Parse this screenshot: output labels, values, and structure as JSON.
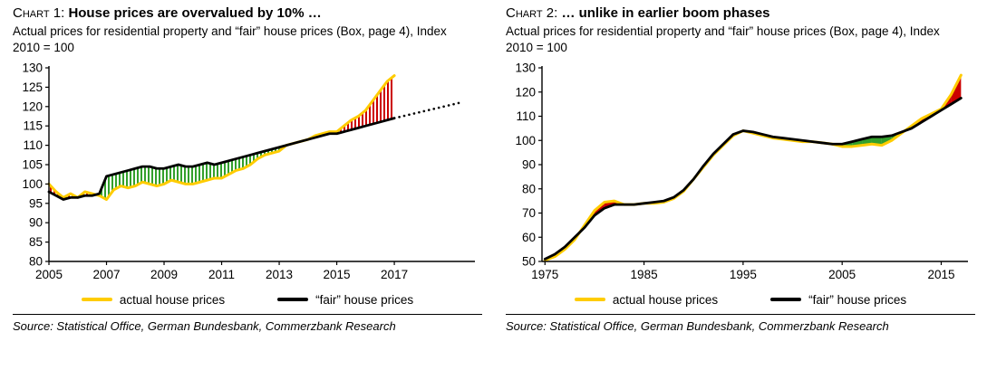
{
  "source": "Source: Statistical Office, German Bundesbank, Commerzbank Research",
  "colors": {
    "actual": "#FFCC00",
    "fair": "#000000",
    "overvalued": "#CC0000",
    "undervalued": "#33A02C"
  },
  "charts": [
    {
      "label": "Chart 1:",
      "title": "House prices are overvalued by 10% …",
      "subtitle": "Actual prices for residential property and “fair” house prices (Box, page 4), Index 2010 = 100",
      "legend": [
        {
          "name": "actual house prices"
        },
        {
          "name": "“fair” house prices"
        }
      ]
    },
    {
      "label": "Chart 2:",
      "title": "… unlike in earlier boom phases",
      "subtitle": "Actual prices for residential property and “fair” house prices (Box, page 4), Index 2010 = 100",
      "legend": [
        {
          "name": "actual house prices"
        },
        {
          "name": "“fair” house prices"
        }
      ]
    }
  ],
  "chart_data": [
    {
      "type": "line",
      "title": "House prices are overvalued by 10% …",
      "xlabel": "",
      "ylabel": "Index 2010 = 100",
      "ylim": [
        80,
        130
      ],
      "yticks": [
        80,
        85,
        90,
        95,
        100,
        105,
        110,
        115,
        120,
        125,
        130
      ],
      "xlim": [
        2005,
        2019.8
      ],
      "xticks": [
        2005,
        2007,
        2009,
        2011,
        2013,
        2015,
        2017
      ],
      "fill_style": "hatch",
      "grid": false,
      "legend_position": "bottom",
      "x": [
        2005,
        2005.25,
        2005.5,
        2005.75,
        2006,
        2006.25,
        2006.5,
        2006.75,
        2007,
        2007.25,
        2007.5,
        2007.75,
        2008,
        2008.25,
        2008.5,
        2008.75,
        2009,
        2009.25,
        2009.5,
        2009.75,
        2010,
        2010.25,
        2010.5,
        2010.75,
        2011,
        2011.25,
        2011.5,
        2011.75,
        2012,
        2012.25,
        2012.5,
        2012.75,
        2013,
        2013.25,
        2013.5,
        2013.75,
        2014,
        2014.25,
        2014.5,
        2014.75,
        2015,
        2015.25,
        2015.5,
        2015.75,
        2016,
        2016.25,
        2016.5,
        2016.75,
        2017
      ],
      "series": [
        {
          "name": "actual house prices",
          "values": [
            100,
            98,
            96.5,
            97.5,
            96.5,
            98,
            97.5,
            97,
            96,
            98.5,
            99.5,
            99,
            99.5,
            100.5,
            100,
            99.5,
            100,
            101,
            100.5,
            100,
            100,
            100.5,
            101,
            101.5,
            101.5,
            102.5,
            103.5,
            104,
            105,
            106.5,
            107.5,
            108,
            108.5,
            110,
            110.5,
            111,
            111.5,
            112.5,
            113,
            113.5,
            113.5,
            115,
            116.5,
            117.5,
            119,
            121.5,
            124,
            126.5,
            128
          ]
        },
        {
          "name": "“fair” house prices",
          "values": [
            98,
            97,
            96,
            96.5,
            96.5,
            97,
            97,
            97.5,
            102,
            102.5,
            103,
            103.5,
            104,
            104.5,
            104.5,
            104,
            104,
            104.5,
            105,
            104.5,
            104.5,
            105,
            105.5,
            105,
            105.5,
            106,
            106.5,
            107,
            107.5,
            108,
            108.5,
            109,
            109.5,
            110,
            110.5,
            111,
            111.5,
            112,
            112.5,
            113,
            113,
            113.5,
            114,
            114.5,
            115,
            115.5,
            116,
            116.5,
            117
          ]
        }
      ],
      "forecast": {
        "name": "fair house prices extrapolation (dotted)",
        "x": [
          2017,
          2019.4
        ],
        "values": [
          117,
          121.2
        ]
      }
    },
    {
      "type": "line",
      "title": "… unlike in earlier boom phases",
      "xlabel": "",
      "ylabel": "Index 2010 = 100",
      "ylim": [
        50,
        130
      ],
      "yticks": [
        50,
        60,
        70,
        80,
        90,
        100,
        110,
        120,
        130
      ],
      "xlim": [
        1974.7,
        2017.7
      ],
      "xticks": [
        1975,
        1985,
        1995,
        2005,
        2015
      ],
      "fill_style": "solid",
      "grid": false,
      "legend_position": "bottom",
      "x": [
        1975,
        1976,
        1977,
        1978,
        1979,
        1980,
        1981,
        1982,
        1983,
        1984,
        1985,
        1986,
        1987,
        1988,
        1989,
        1990,
        1991,
        1992,
        1993,
        1994,
        1995,
        1996,
        1997,
        1998,
        1999,
        2000,
        2001,
        2002,
        2003,
        2004,
        2005,
        2006,
        2007,
        2008,
        2009,
        2010,
        2011,
        2012,
        2013,
        2014,
        2015,
        2016,
        2017
      ],
      "series": [
        {
          "name": "actual house prices",
          "values": [
            50.5,
            52,
            55,
            59,
            65,
            71,
            74.5,
            75,
            73.5,
            73.5,
            74,
            74,
            74.5,
            76,
            79,
            84,
            89,
            94,
            98,
            102,
            104,
            103,
            102,
            101,
            100.5,
            100,
            99.5,
            99.5,
            99,
            98.5,
            97.5,
            97.5,
            98,
            98.5,
            98,
            100,
            103,
            106,
            109,
            111,
            113,
            119,
            127
          ]
        },
        {
          "name": "“fair” house prices",
          "values": [
            51,
            53,
            56,
            60,
            64,
            69,
            72,
            73.5,
            73.5,
            73.5,
            74,
            74.5,
            75,
            76.5,
            79.5,
            84,
            89.5,
            94.5,
            98.5,
            102.5,
            104,
            103.5,
            102.5,
            101.5,
            101,
            100.5,
            100,
            99.5,
            99,
            98.5,
            98.5,
            99.5,
            100.5,
            101.5,
            101.5,
            102,
            103.5,
            105,
            107.5,
            110,
            112.5,
            115,
            117.5
          ]
        }
      ]
    }
  ]
}
